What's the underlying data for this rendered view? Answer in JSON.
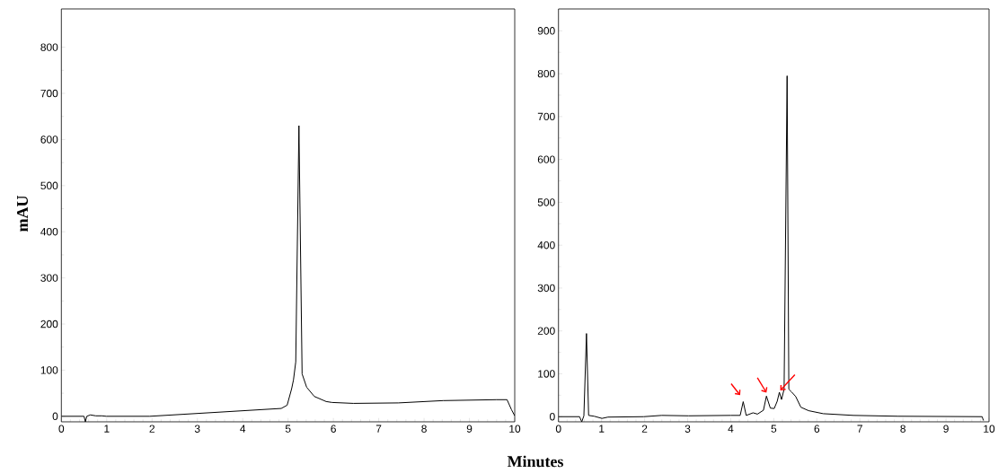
{
  "chart_data": [
    {
      "type": "line",
      "xlabel": "Minutes",
      "ylabel": "mAU",
      "xlim": [
        0,
        10
      ],
      "ylim": [
        -12,
        883
      ],
      "xticks": [
        0,
        1,
        2,
        3,
        4,
        5,
        6,
        7,
        8,
        9,
        10
      ],
      "yticks": [
        0,
        100,
        200,
        300,
        400,
        500,
        600,
        700,
        800
      ],
      "grid": false,
      "series": [
        {
          "color": "#000000",
          "x": [
            0,
            0.5,
            0.53,
            0.56,
            0.64,
            0.76,
            0.89,
            0.99,
            1.95,
            4.85,
            4.98,
            5.08,
            5.12,
            5.17,
            5.24,
            5.31,
            5.41,
            5.58,
            5.84,
            5.97,
            6.44,
            7.43,
            8.42,
            9.6,
            9.83,
            9.93,
            10
          ],
          "values": [
            0,
            0,
            -12,
            0,
            3,
            1,
            1,
            0,
            0,
            17,
            24,
            60,
            79,
            118,
            630,
            92,
            63,
            43,
            32,
            30,
            28,
            29,
            34,
            36,
            36,
            14,
            1
          ]
        }
      ]
    },
    {
      "type": "line",
      "xlim": [
        0,
        10
      ],
      "ylim": [
        -12,
        951
      ],
      "xticks": [
        0,
        1,
        2,
        3,
        4,
        5,
        6,
        7,
        8,
        9,
        10
      ],
      "yticks": [
        0,
        100,
        200,
        300,
        400,
        500,
        600,
        700,
        800,
        900
      ],
      "grid": false,
      "series": [
        {
          "color": "#000000",
          "x": [
            0,
            0.49,
            0.54,
            0.59,
            0.65,
            0.7,
            0.83,
            1.01,
            1.15,
            1.98,
            2.4,
            3.02,
            4.0,
            4.22,
            4.29,
            4.36,
            4.52,
            4.62,
            4.76,
            4.83,
            4.92,
            5.01,
            5.08,
            5.13,
            5.18,
            5.24,
            5.31,
            5.35,
            5.42,
            5.51,
            5.63,
            5.81,
            6.15,
            6.85,
            7.89,
            9.84,
            9.87
          ],
          "values": [
            0,
            0,
            -12,
            2,
            194,
            3,
            1,
            -4,
            -1,
            0,
            3,
            2,
            3,
            3,
            35,
            3,
            9,
            6,
            15,
            48,
            20,
            19,
            36,
            57,
            40,
            64,
            795,
            64,
            57,
            47,
            22,
            14,
            7,
            3,
            1,
            0,
            -9
          ]
        }
      ]
    }
  ]
}
